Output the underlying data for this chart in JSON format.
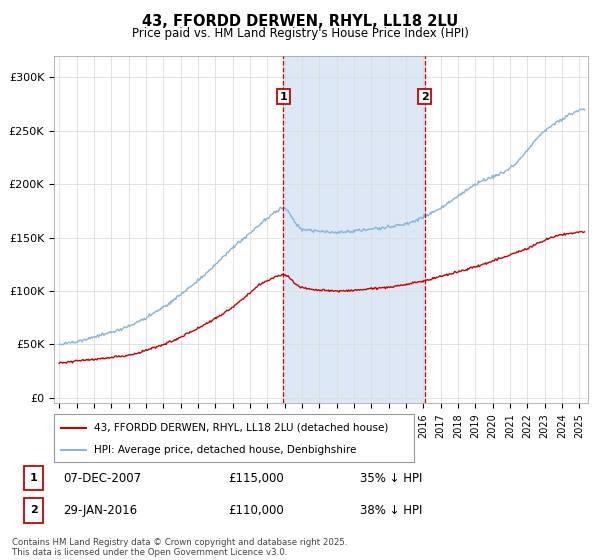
{
  "title": "43, FFORDD DERWEN, RHYL, LL18 2LU",
  "subtitle": "Price paid vs. HM Land Registry's House Price Index (HPI)",
  "ylabel_ticks": [
    "£0",
    "£50K",
    "£100K",
    "£150K",
    "£200K",
    "£250K",
    "£300K"
  ],
  "ytick_values": [
    0,
    50000,
    100000,
    150000,
    200000,
    250000,
    300000
  ],
  "ylim": [
    -5000,
    320000
  ],
  "xlim_start": 1994.7,
  "xlim_end": 2025.5,
  "hpi_color": "#8ab4d8",
  "price_color": "#cc0000",
  "vline_color": "#cc0000",
  "shaded_color": "#dce8f5",
  "marker1_x": 2007.93,
  "marker2_x": 2016.08,
  "legend_label_price": "43, FFORDD DERWEN, RHYL, LL18 2LU (detached house)",
  "legend_label_hpi": "HPI: Average price, detached house, Denbighshire",
  "table_row1": [
    "1",
    "07-DEC-2007",
    "£115,000",
    "35% ↓ HPI"
  ],
  "table_row2": [
    "2",
    "29-JAN-2016",
    "£110,000",
    "38% ↓ HPI"
  ],
  "footnote": "Contains HM Land Registry data © Crown copyright and database right 2025.\nThis data is licensed under the Open Government Licence v3.0.",
  "background_color": "#ffffff",
  "grid_color": "#dddddd"
}
